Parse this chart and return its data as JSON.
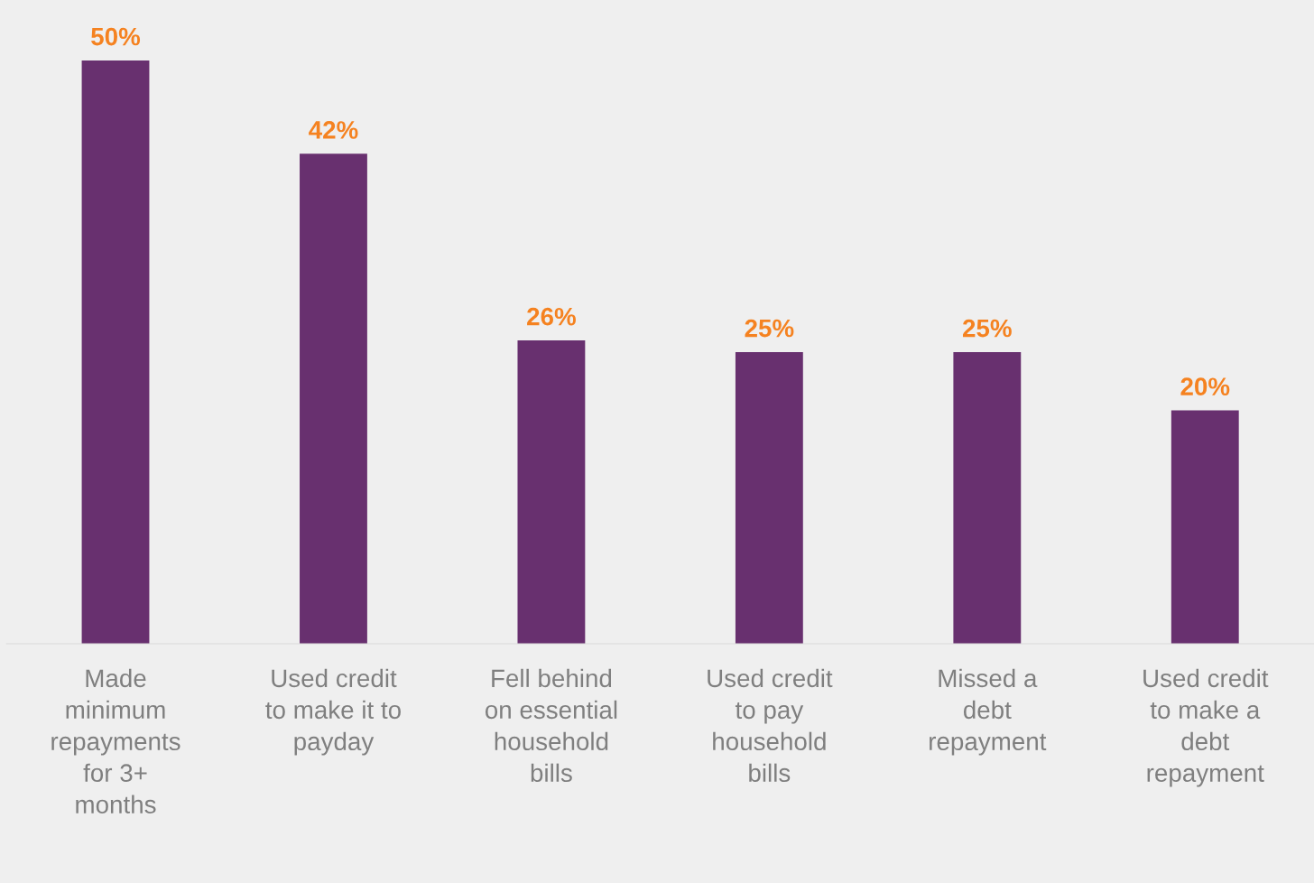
{
  "chart_data": {
    "type": "bar",
    "categories": [
      "Made\nminimum\nrepayments\nfor 3+\nmonths",
      "Used credit\nto make it to\npayday",
      "Fell behind\non essential\nhousehold\nbills",
      "Used credit\nto pay\nhousehold\nbills",
      "Missed a\ndebt\nrepayment",
      "Used credit\nto make a\ndebt\nrepayment"
    ],
    "values": [
      50,
      42,
      26,
      25,
      25,
      20
    ],
    "color": "#68306f",
    "value_labels": [
      "50%",
      "42%",
      "26%",
      "25%",
      "25%",
      "20%"
    ],
    "grid": false,
    "legend": false,
    "tick_labels": "x"
  }
}
